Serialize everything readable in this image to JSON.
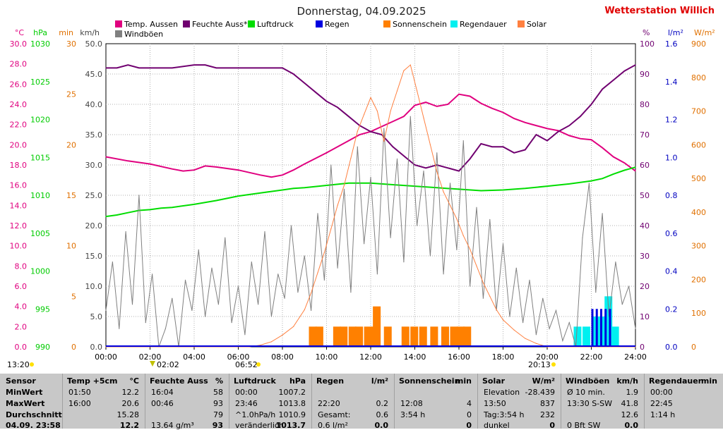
{
  "title": "Donnerstag, 04.09.2025",
  "brand": "Wetterstation Willich",
  "left_axes": [
    {
      "unit": "°C",
      "color": "#e0007f",
      "ticks": [
        "30.0",
        "28.0",
        "26.0",
        "24.0",
        "22.0",
        "20.0",
        "18.0",
        "16.0",
        "14.0",
        "12.0",
        "10.0",
        "8.0",
        "6.0",
        "4.0",
        "2.0",
        "0.0"
      ]
    },
    {
      "unit": "hPa",
      "color": "#00cc00",
      "ticks": [
        "1030",
        "1025",
        "1020",
        "1015",
        "1010",
        "1005",
        "1000",
        "995",
        "990"
      ]
    },
    {
      "unit": "min",
      "color": "#e07000",
      "ticks": [
        "30",
        "25",
        "20",
        "15",
        "10",
        "5",
        "0"
      ]
    },
    {
      "unit": "km/h",
      "color": "#444444",
      "ticks": [
        "50.0",
        "45.0",
        "40.0",
        "35.0",
        "30.0",
        "25.0",
        "20.0",
        "15.0",
        "10.0",
        "5.0",
        "0.0"
      ]
    }
  ],
  "right_axes": [
    {
      "unit": "%",
      "color": "#700070",
      "ticks": [
        "100",
        "90",
        "80",
        "70",
        "60",
        "50",
        "40",
        "30",
        "20",
        "10",
        "0"
      ]
    },
    {
      "unit": "l/m²",
      "color": "#0000c0",
      "ticks": [
        "1.6",
        "1.4",
        "1.2",
        "1.0",
        "0.8",
        "0.6",
        "0.4",
        "0.2",
        "0.0"
      ]
    },
    {
      "unit": "W/m²",
      "color": "#e07000",
      "ticks": [
        "900",
        "800",
        "700",
        "600",
        "500",
        "400",
        "300",
        "200",
        "100",
        "0"
      ]
    }
  ],
  "x_ticks": [
    "00:00",
    "02:00",
    "04:00",
    "06:00",
    "08:00",
    "10:00",
    "12:00",
    "14:00",
    "16:00",
    "18:00",
    "20:00",
    "22:00",
    "24:00"
  ],
  "legend": [
    {
      "label": "Temp. Aussen",
      "color": "#e0007f"
    },
    {
      "label": "Feuchte Auss*",
      "color": "#700070"
    },
    {
      "label": "Luftdruck",
      "color": "#00dd00"
    },
    {
      "label": "Regen",
      "color": "#0000e0"
    },
    {
      "label": "Sonnenschein",
      "color": "#ff8000"
    },
    {
      "label": "Regendauer",
      "color": "#00f0f0"
    },
    {
      "label": "Solar",
      "color": "#ff8040"
    },
    {
      "label": "Windböen",
      "color": "#808080"
    }
  ],
  "markers": {
    "left_time": "13:20",
    "sunrise": "06:52",
    "moon_time": "02:02",
    "sunset": "20:13"
  },
  "chart_data": {
    "type": "line",
    "x_unit": "hours",
    "xlim": [
      0,
      24
    ],
    "series": [
      {
        "name": "Temp. Aussen",
        "color": "#e0007f",
        "axis": "°C",
        "ylim": [
          0,
          30
        ],
        "x": [
          0,
          1,
          2,
          3,
          3.5,
          4,
          4.5,
          5,
          6,
          7,
          7.5,
          8,
          8.5,
          9,
          10,
          11,
          11.5,
          12,
          12.5,
          13,
          13.5,
          14,
          14.5,
          15,
          15.5,
          16,
          16.5,
          17,
          17.5,
          18,
          18.5,
          19,
          19.5,
          20,
          20.5,
          21,
          21.5,
          22,
          22.5,
          23,
          23.5,
          24
        ],
        "y": [
          18.8,
          18.4,
          18.1,
          17.6,
          17.4,
          17.5,
          17.9,
          17.8,
          17.5,
          17.0,
          16.8,
          17.0,
          17.5,
          18.1,
          19.2,
          20.4,
          21.0,
          21.3,
          21.8,
          22.3,
          22.8,
          23.9,
          24.2,
          23.8,
          24.0,
          25.0,
          24.8,
          24.1,
          23.6,
          23.2,
          22.6,
          22.2,
          21.9,
          21.6,
          21.4,
          20.9,
          20.6,
          20.5,
          19.7,
          18.8,
          18.2,
          17.4
        ]
      },
      {
        "name": "Feuchte Auss*",
        "color": "#700070",
        "axis": "%",
        "ylim": [
          0,
          100
        ],
        "x": [
          0,
          0.5,
          1,
          1.5,
          2,
          3,
          4,
          4.5,
          5,
          6,
          7,
          8,
          8.5,
          9,
          9.5,
          10,
          10.5,
          11,
          11.5,
          12,
          12.5,
          13,
          13.5,
          14,
          14.5,
          15,
          15.5,
          16,
          16.5,
          17,
          17.5,
          18,
          18.5,
          19,
          19.5,
          20,
          20.5,
          21,
          21.5,
          22,
          22.5,
          23,
          23.5,
          24
        ],
        "y": [
          92,
          92,
          93,
          92,
          92,
          92,
          93,
          93,
          92,
          92,
          92,
          92,
          90,
          87,
          84,
          81,
          79,
          76,
          73,
          71,
          70,
          66,
          63,
          60,
          59,
          60,
          59,
          58,
          62,
          67,
          66,
          66,
          64,
          65,
          70,
          68,
          71,
          73,
          76,
          80,
          85,
          88,
          91,
          93
        ]
      },
      {
        "name": "Luftdruck",
        "color": "#00dd00",
        "axis": "hPa",
        "ylim": [
          990,
          1030
        ],
        "x": [
          0,
          0.5,
          1,
          1.5,
          2,
          2.5,
          3,
          4,
          5,
          6,
          7,
          7.5,
          8,
          8.5,
          9,
          10,
          11,
          12,
          13,
          14,
          15,
          16,
          17,
          18,
          19,
          20,
          21,
          22,
          22.5,
          23,
          23.5,
          24
        ],
        "y": [
          1007.2,
          1007.4,
          1007.7,
          1008.0,
          1008.1,
          1008.3,
          1008.4,
          1008.8,
          1009.3,
          1009.9,
          1010.3,
          1010.5,
          1010.7,
          1010.9,
          1011.0,
          1011.3,
          1011.6,
          1011.6,
          1011.4,
          1011.2,
          1011.0,
          1010.8,
          1010.6,
          1010.7,
          1010.9,
          1011.2,
          1011.5,
          1011.9,
          1012.2,
          1012.8,
          1013.3,
          1013.7
        ]
      },
      {
        "name": "Windböen",
        "color": "#808080",
        "axis": "km/h",
        "ylim": [
          0,
          50
        ],
        "x": [
          0,
          0.3,
          0.6,
          0.9,
          1.2,
          1.5,
          1.8,
          2.1,
          2.4,
          2.7,
          3.0,
          3.3,
          3.6,
          3.9,
          4.2,
          4.5,
          4.8,
          5.1,
          5.4,
          5.7,
          6.0,
          6.3,
          6.6,
          6.9,
          7.2,
          7.5,
          7.8,
          8.1,
          8.4,
          8.7,
          9.0,
          9.3,
          9.6,
          9.9,
          10.2,
          10.5,
          10.8,
          11.1,
          11.4,
          11.7,
          12.0,
          12.3,
          12.6,
          12.9,
          13.2,
          13.5,
          13.8,
          14.1,
          14.4,
          14.7,
          15.0,
          15.3,
          15.6,
          15.9,
          16.2,
          16.5,
          16.8,
          17.1,
          17.4,
          17.7,
          18.0,
          18.3,
          18.6,
          18.9,
          19.2,
          19.5,
          19.8,
          20.1,
          20.4,
          20.7,
          21.0,
          21.3,
          21.6,
          21.9,
          22.2,
          22.5,
          22.8,
          23.1,
          23.4,
          23.7,
          24.0
        ],
        "y": [
          6,
          14,
          3,
          19,
          7,
          25,
          4,
          12,
          0,
          3,
          8,
          0,
          11,
          6,
          16,
          5,
          13,
          7,
          18,
          4,
          10,
          2,
          14,
          7,
          19,
          5,
          12,
          8,
          20,
          9,
          15,
          6,
          22,
          11,
          30,
          13,
          26,
          9,
          33,
          17,
          28,
          12,
          36,
          18,
          31,
          14,
          38,
          20,
          29,
          15,
          32,
          12,
          27,
          16,
          34,
          10,
          23,
          8,
          21,
          6,
          17,
          5,
          13,
          4,
          11,
          2,
          8,
          3,
          6,
          1,
          4,
          0,
          18,
          27,
          9,
          22,
          5,
          14,
          7,
          10,
          3
        ]
      },
      {
        "name": "Solar",
        "color": "#ff8040",
        "axis": "W/m²",
        "ylim": [
          0,
          900
        ],
        "x": [
          0,
          6.5,
          7,
          7.5,
          8,
          8.5,
          9,
          9.3,
          9.6,
          9.9,
          10.2,
          10.5,
          10.8,
          11.1,
          11.4,
          11.7,
          12.0,
          12.3,
          12.6,
          12.9,
          13.2,
          13.5,
          13.8,
          14.1,
          14.4,
          14.7,
          15.0,
          15.3,
          15.6,
          15.9,
          16.2,
          16.5,
          16.8,
          17.1,
          17.4,
          17.7,
          18.0,
          18.5,
          19,
          19.5,
          20,
          24
        ],
        "y": [
          0,
          0,
          5,
          15,
          35,
          60,
          110,
          160,
          220,
          280,
          350,
          420,
          480,
          560,
          640,
          690,
          740,
          700,
          610,
          700,
          760,
          820,
          837,
          760,
          680,
          600,
          520,
          460,
          420,
          380,
          330,
          290,
          240,
          190,
          150,
          110,
          80,
          50,
          25,
          10,
          0,
          0
        ]
      },
      {
        "name": "Regen",
        "color": "#0000e0",
        "axis": "l/m²",
        "ylim": [
          0,
          1.6
        ],
        "x": [
          22.0,
          22.2,
          22.4,
          22.6,
          22.8
        ],
        "y": [
          0.2,
          0.2,
          0.2,
          0.2,
          0.2
        ]
      }
    ],
    "bars": [
      {
        "name": "Sonnenschein",
        "color": "#ff8000",
        "axis": "min",
        "ylim": [
          0,
          30
        ],
        "x": [
          9.2,
          9.5,
          10.3,
          10.6,
          11.0,
          11.3,
          11.7,
          12.0,
          12.1,
          12.6,
          13.4,
          13.8,
          14.2,
          14.7,
          15.2,
          15.6,
          15.9,
          16.2
        ],
        "y": [
          2,
          2,
          2,
          2,
          2,
          2,
          2,
          2,
          4,
          2,
          2,
          2,
          2,
          2,
          2,
          2,
          2,
          2
        ]
      },
      {
        "name": "Regendauer",
        "color": "#00f0f0",
        "axis": "min",
        "ylim": [
          0,
          30
        ],
        "x": [
          21.2,
          21.6,
          22.0,
          22.3,
          22.6,
          22.9
        ],
        "y": [
          2,
          2,
          3,
          3,
          5,
          2
        ]
      }
    ]
  },
  "stats": {
    "row_labels": [
      "Sensor",
      "MinWert",
      "MaxWert",
      "Durchschnitt",
      "04.09. 23:58"
    ],
    "columns": [
      {
        "header": "Temp +5cm",
        "unit": "°C",
        "rows": [
          [
            "01:50",
            "12.2"
          ],
          [
            "16:00",
            "20.6"
          ],
          [
            "",
            "15.28"
          ],
          [
            "",
            "12.2"
          ]
        ]
      },
      {
        "header": "Feuchte Auss",
        "unit": "%",
        "rows": [
          [
            "16:04",
            "58"
          ],
          [
            "00:46",
            "93"
          ],
          [
            "",
            "79"
          ],
          [
            "13.64 g/m³",
            "93"
          ]
        ]
      },
      {
        "header": "Luftdruck",
        "unit": "hPa",
        "rows": [
          [
            "00:00",
            "1007.2"
          ],
          [
            "23:46",
            "1013.8"
          ],
          [
            "^1.0hPa/h",
            "1010.9"
          ],
          [
            "veränderlich",
            "1013.7"
          ]
        ]
      },
      {
        "header": "Regen",
        "unit": "l/m²",
        "rows": [
          [
            "",
            ""
          ],
          [
            "22:20",
            "0.2"
          ],
          [
            "Gesamt:",
            "0.6"
          ],
          [
            "0.6 l/m²",
            "0.0"
          ]
        ]
      },
      {
        "header": "Sonnenschein",
        "unit": "min",
        "rows": [
          [
            "",
            ""
          ],
          [
            "12:08",
            "4"
          ],
          [
            "3:54 h",
            "0"
          ],
          [
            "",
            "0"
          ]
        ]
      },
      {
        "header": "Solar",
        "unit": "W/m²",
        "rows": [
          [
            "Elevation",
            "-28.439"
          ],
          [
            "13:50",
            "837"
          ],
          [
            "Tag:3:54 h",
            "232"
          ],
          [
            "dunkel",
            "0"
          ]
        ]
      },
      {
        "header": "Windböen",
        "unit": "km/h",
        "rows": [
          [
            "Ø 10 min.",
            "1.9"
          ],
          [
            "13:30   S-SW",
            "41.8"
          ],
          [
            "",
            "12.6"
          ],
          [
            "0 Bft SW",
            "0.0"
          ]
        ]
      },
      {
        "header": "Regendauer",
        "unit": "min",
        "rows": [
          [
            "00:00",
            ""
          ],
          [
            "22:45",
            ""
          ],
          [
            "1:14 h",
            ""
          ],
          [
            "",
            ""
          ]
        ]
      }
    ]
  }
}
